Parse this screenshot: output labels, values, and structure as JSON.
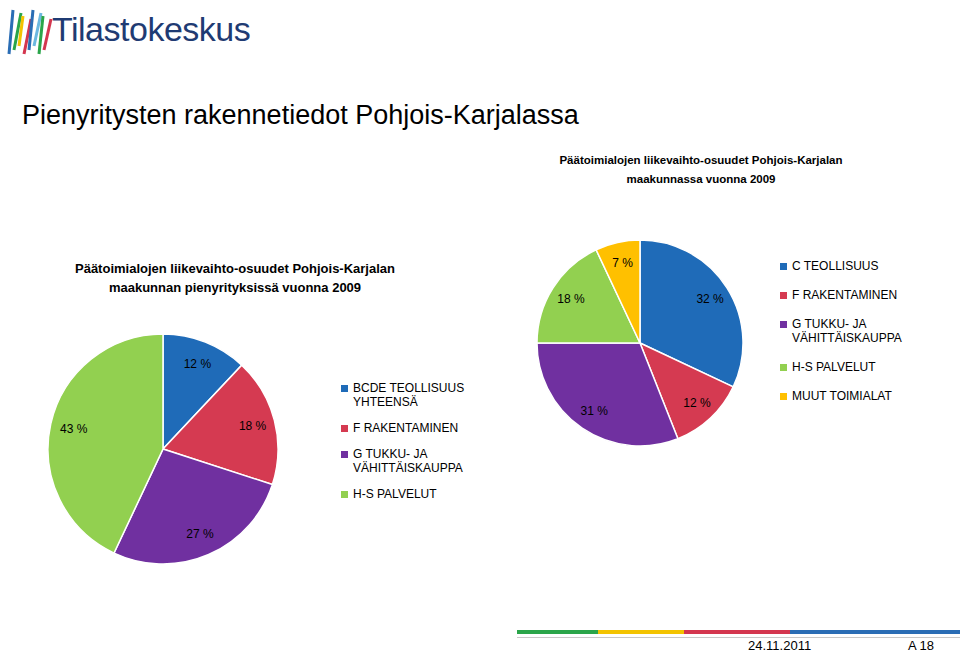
{
  "header": {
    "logo": "Tilastokeskus",
    "title": "Pienyritysten rakennetiedot Pohjois-Karjalassa"
  },
  "chart_data": [
    {
      "type": "pie",
      "title": "Päätoimialojen liikevaihto-osuudet Pohjois-Karjalan maakunnan pienyrityksissä vuonna 2009",
      "categories": [
        "BCDE TEOLLISUUS YHTEENSÄ",
        "F RAKENTAMINEN",
        "G TUKKU- JA VÄHITTÄISKAUPPA",
        "H-S PALVELUT"
      ],
      "values": [
        12,
        18,
        27,
        43
      ],
      "value_labels": [
        "12 %",
        "18 %",
        "27 %",
        "43 %"
      ],
      "colors": [
        "#1f6bb8",
        "#d53a51",
        "#7030a0",
        "#92d050"
      ],
      "data_labels": true,
      "legend": "right"
    },
    {
      "type": "pie",
      "title": "Päätoimialojen liikevaihto-osuudet Pohjois-Karjalan maakunnassa vuonna 2009",
      "categories": [
        "C TEOLLISUUS",
        "F RAKENTAMINEN",
        "G TUKKU- JA VÄHITTÄISKAUPPA",
        "H-S PALVELUT",
        "MUUT TOIMIALAT"
      ],
      "values": [
        32,
        12,
        31,
        18,
        7
      ],
      "value_labels": [
        "32 %",
        "12 %",
        "31 %",
        "18 %",
        "7 %"
      ],
      "colors": [
        "#1f6bb8",
        "#d53a51",
        "#7030a0",
        "#92d050",
        "#ffc000"
      ],
      "data_labels": true,
      "legend": "right"
    }
  ],
  "footer": {
    "date": "24.11.2011",
    "page": "A 18"
  }
}
